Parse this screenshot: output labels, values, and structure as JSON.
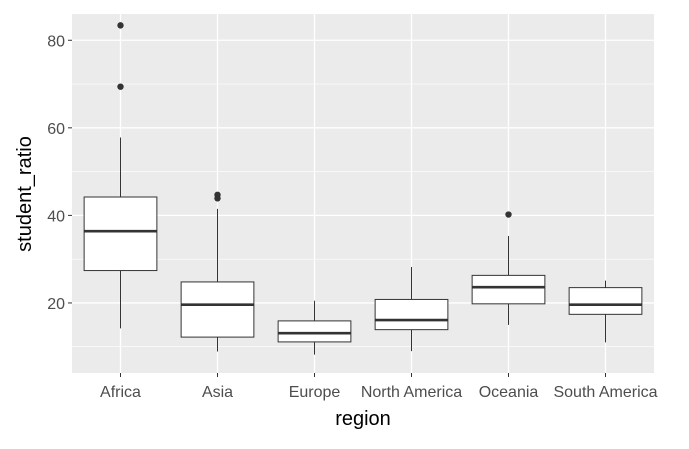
{
  "chart_data": {
    "type": "boxplot",
    "title": "",
    "xlabel": "region",
    "ylabel": "student_ratio",
    "categories": [
      "Africa",
      "Asia",
      "Europe",
      "North America",
      "Oceania",
      "South America"
    ],
    "ylim": [
      4,
      86
    ],
    "yticks": [
      20,
      40,
      60,
      80
    ],
    "grid": true,
    "legend": "none",
    "boxes": [
      {
        "category": "Africa",
        "lower_whisker": 14.2,
        "q1": 27.4,
        "median": 36.4,
        "q3": 44.2,
        "upper_whisker": 57.8,
        "outliers": [
          69.4,
          83.4
        ]
      },
      {
        "category": "Asia",
        "lower_whisker": 8.9,
        "q1": 12.2,
        "median": 19.6,
        "q3": 24.8,
        "upper_whisker": 41.5,
        "outliers": [
          43.9,
          44.7
        ]
      },
      {
        "category": "Europe",
        "lower_whisker": 8.2,
        "q1": 11.1,
        "median": 13.1,
        "q3": 15.9,
        "upper_whisker": 20.5,
        "outliers": []
      },
      {
        "category": "North America",
        "lower_whisker": 9.0,
        "q1": 13.9,
        "median": 16.1,
        "q3": 20.8,
        "upper_whisker": 28.2,
        "outliers": []
      },
      {
        "category": "Oceania",
        "lower_whisker": 15.0,
        "q1": 19.8,
        "median": 23.6,
        "q3": 26.3,
        "upper_whisker": 35.3,
        "outliers": [
          40.2
        ]
      },
      {
        "category": "South America",
        "lower_whisker": 11.0,
        "q1": 17.4,
        "median": 19.6,
        "q3": 23.5,
        "upper_whisker": 25.1,
        "outliers": []
      }
    ],
    "colors": {
      "panel_background": "#ebebeb",
      "grid_major": "#ffffff",
      "box_fill": "#ffffff",
      "box_stroke": "#333333",
      "outlier": "#333333"
    }
  }
}
